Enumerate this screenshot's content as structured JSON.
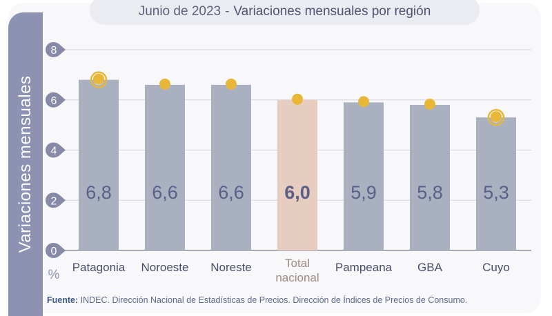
{
  "chart_data": {
    "type": "bar",
    "title_date": "Junio de 2023",
    "title_sep": "-",
    "title": "Variaciones mensuales por región",
    "ylabel": "Variaciones  mensuales",
    "yunit": "%",
    "ylim": [
      0,
      8
    ],
    "yticks": [
      0,
      2,
      4,
      6,
      8
    ],
    "grid": true,
    "categories": [
      "Patagonia",
      "Noroeste",
      "Noreste",
      "Total nacional",
      "Pampeana",
      "GBA",
      "Cuyo"
    ],
    "category_lines": [
      [
        "Patagonia"
      ],
      [
        "Noroeste"
      ],
      [
        "Noreste"
      ],
      [
        "Total",
        "nacional"
      ],
      [
        "Pampeana"
      ],
      [
        "GBA"
      ],
      [
        "Cuyo"
      ]
    ],
    "values": [
      6.8,
      6.6,
      6.6,
      6.0,
      5.9,
      5.8,
      5.3
    ],
    "value_labels": [
      "6,8",
      "6,6",
      "6,6",
      "6,0",
      "5,9",
      "5,8",
      "5,3"
    ],
    "highlighted": [
      "Patagonia",
      "Cuyo"
    ],
    "colors": {
      "bar": "#a9b1c0",
      "total": "#e6cdbf",
      "marker": "#e9b738",
      "value_text": "#5b5f88",
      "total_label": "#9a8a80",
      "tick_badge": "#878aa6"
    }
  },
  "source": {
    "label": "Fuente:",
    "text": " INDEC. Dirección Nacional de Estadísticas de Precios. Dirección de Índices de Precios de Consumo."
  }
}
